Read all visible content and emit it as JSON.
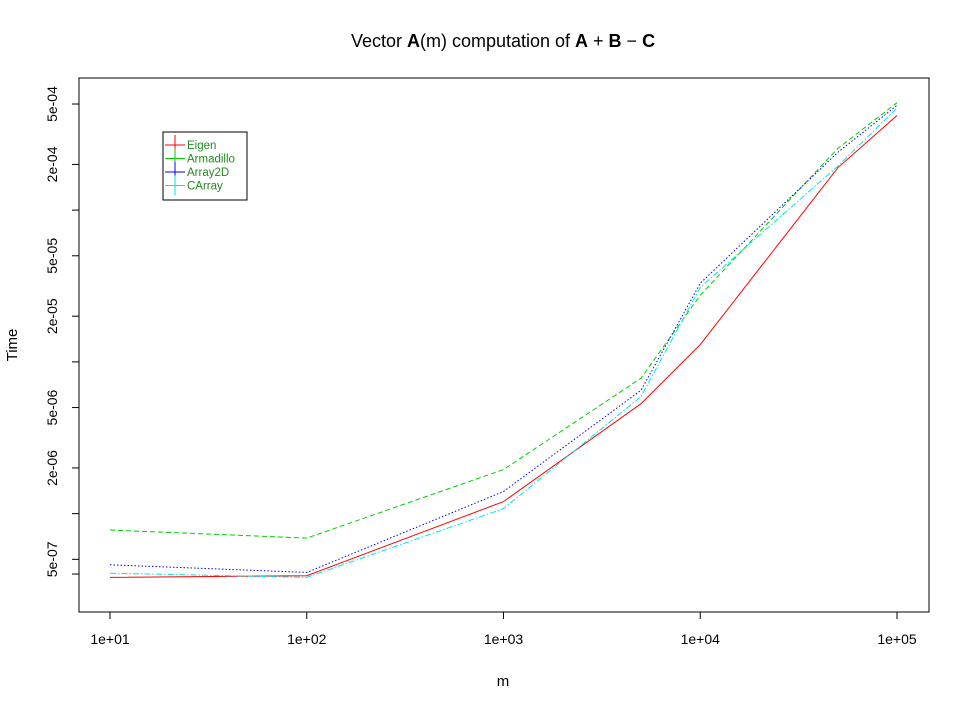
{
  "chart_data": {
    "type": "line",
    "title": {
      "parts": [
        {
          "text": "Vector ",
          "bold": false
        },
        {
          "text": "A",
          "bold": true
        },
        {
          "text": "(m) computation of ",
          "bold": false
        },
        {
          "text": "A",
          "bold": true
        },
        {
          "text": " + ",
          "bold": false
        },
        {
          "text": "B",
          "bold": true
        },
        {
          "text": " − ",
          "bold": false
        },
        {
          "text": "C",
          "bold": true
        }
      ]
    },
    "xlabel": "m",
    "ylabel": "Time",
    "x_scale": "log",
    "y_scale": "log",
    "xlim": [
      10,
      100000
    ],
    "ylim": [
      3e-07,
      0.0006
    ],
    "x_ticks": [
      10,
      100,
      1000,
      10000,
      100000
    ],
    "x_tick_labels": [
      "1e+01",
      "1e+02",
      "1e+03",
      "1e+04",
      "1e+05"
    ],
    "y_ticks": [
      4e-07,
      5e-07,
      1e-06,
      2e-06,
      5e-06,
      1e-05,
      2e-05,
      5e-05,
      0.0001,
      0.0002,
      0.0005
    ],
    "y_tick_labels": [
      "",
      "5e-07",
      "",
      "2e-06",
      "5e-06",
      "",
      "2e-05",
      "5e-05",
      "",
      "2e-04",
      "5e-04"
    ],
    "x": [
      10,
      100,
      1000,
      5000,
      10000,
      50000,
      100000
    ],
    "series": [
      {
        "name": "Eigen",
        "color": "#ff0000",
        "dash": "",
        "values": [
          3.8e-07,
          3.9e-07,
          1.2e-06,
          5.3e-06,
          1.3e-05,
          0.00019,
          0.00042
        ]
      },
      {
        "name": "Armadillo",
        "color": "#00cd00",
        "dash": "5,3",
        "values": [
          7.8e-07,
          6.9e-07,
          1.95e-06,
          7.8e-06,
          2.75e-05,
          0.000255,
          0.00051
        ]
      },
      {
        "name": "Array2D",
        "color": "#0000ff",
        "dash": "1.5,2",
        "values": [
          4.6e-07,
          4.1e-07,
          1.4e-06,
          6.5e-06,
          3.3e-05,
          0.00024,
          0.00049
        ]
      },
      {
        "name": "CArray",
        "color": "#00e5ee",
        "dash": "6,2,1.5,2",
        "values": [
          4.05e-07,
          3.8e-07,
          1.08e-06,
          5.9e-06,
          3.1e-05,
          0.000195,
          0.00047
        ]
      }
    ],
    "legend": {
      "position": "top-left",
      "text_color": "#228b22"
    },
    "grid": false
  }
}
